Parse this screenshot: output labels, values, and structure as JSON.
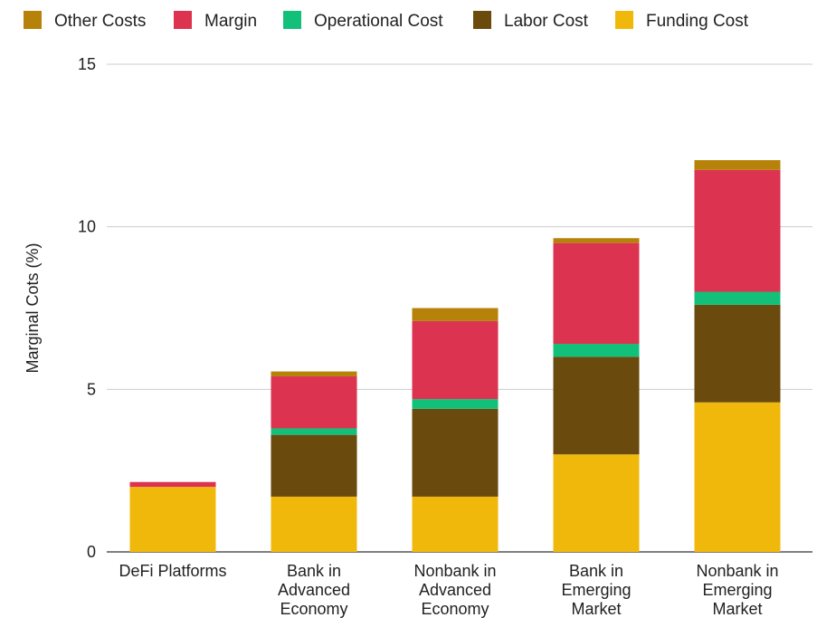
{
  "chart_data": {
    "type": "bar",
    "stacked": true,
    "title": "",
    "xlabel": "",
    "ylabel": "Marginal Cots (%)",
    "ylim": [
      0,
      15
    ],
    "yticks": [
      0,
      5,
      10,
      15
    ],
    "grid": true,
    "legend_position": "top",
    "categories": [
      [
        "DeFi Platforms"
      ],
      [
        "Bank in",
        "Advanced",
        "Economy"
      ],
      [
        "Nonbank in",
        "Advanced",
        "Economy"
      ],
      [
        "Bank in",
        "Emerging",
        "Market"
      ],
      [
        "Nonbank in",
        "Emerging",
        "Market"
      ]
    ],
    "series": [
      {
        "name": "Funding Cost",
        "color": "#F1B80C",
        "values": [
          2.0,
          1.7,
          1.7,
          3.0,
          4.6
        ]
      },
      {
        "name": "Labor Cost",
        "color": "#6B4A0E",
        "values": [
          0.0,
          1.9,
          2.7,
          3.0,
          3.0
        ]
      },
      {
        "name": "Operational Cost",
        "color": "#12C07A",
        "values": [
          0.0,
          0.2,
          0.3,
          0.4,
          0.4
        ]
      },
      {
        "name": "Margin",
        "color": "#DC3350",
        "values": [
          0.15,
          1.6,
          2.4,
          3.1,
          3.75
        ]
      },
      {
        "name": "Other Costs",
        "color": "#B6820A",
        "values": [
          0.0,
          0.15,
          0.4,
          0.15,
          0.3
        ]
      }
    ],
    "legend_order": [
      "Other Costs",
      "Margin",
      "Operational Cost",
      "Labor Cost",
      "Funding Cost"
    ]
  }
}
